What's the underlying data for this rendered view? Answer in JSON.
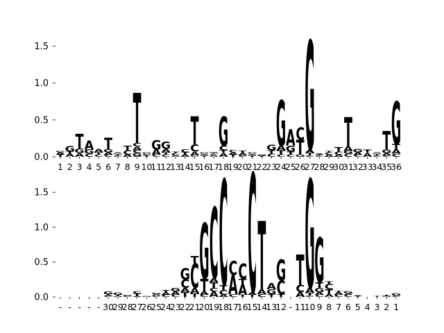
{
  "colors": {
    "A": "#008000",
    "C": "#0000ff",
    "G": "#ffa500",
    "T": "#ff0000"
  },
  "chart_data": [
    {
      "type": "sequence-logo",
      "ylim": [
        0,
        1.75
      ],
      "yticks": [
        "0.0",
        "0.5",
        "1.0",
        "1.5"
      ],
      "ytick_values": [
        0,
        0.5,
        1.0,
        1.5
      ],
      "xlabels": [
        "1",
        "2",
        "3",
        "4",
        "5",
        "6",
        "7",
        "8",
        "9",
        "10",
        "11",
        "12",
        "13",
        "14",
        "15",
        "16",
        "17",
        "18",
        "19",
        "20",
        "21",
        "22",
        "23",
        "24",
        "25",
        "26",
        "27",
        "28",
        "29",
        "30",
        "31",
        "32",
        "33",
        "34",
        "35",
        "36"
      ],
      "stacks": [
        [
          [
            "T",
            0.03
          ],
          [
            "A",
            0.03
          ],
          [
            "G",
            0.02
          ]
        ],
        [
          [
            "A",
            0.04
          ],
          [
            "T",
            0.03
          ],
          [
            "G",
            0.07
          ]
        ],
        [
          [
            "A",
            0.05
          ],
          [
            "G",
            0.06
          ],
          [
            "T",
            0.2
          ]
        ],
        [
          [
            "C",
            0.04
          ],
          [
            "G",
            0.06
          ],
          [
            "A",
            0.12
          ]
        ],
        [
          [
            "C",
            0.03
          ],
          [
            "T",
            0.03
          ],
          [
            "A",
            0.05
          ]
        ],
        [
          [
            "C",
            0.03
          ],
          [
            "A",
            0.03
          ],
          [
            "G",
            0.04
          ],
          [
            "T",
            0.16
          ]
        ],
        [
          [
            "C",
            0.02
          ],
          [
            "T",
            0.02
          ],
          [
            "A",
            0.02
          ]
        ],
        [
          [
            "A",
            0.03
          ],
          [
            "C",
            0.06
          ],
          [
            "T",
            0.06
          ]
        ],
        [
          [
            "A",
            0.01
          ],
          [
            "G",
            0.04
          ],
          [
            "C",
            0.04
          ],
          [
            "A",
            0.05
          ],
          [
            "C",
            0.05
          ],
          [
            "T",
            0.68
          ]
        ],
        [
          [
            "T",
            0.02
          ],
          [
            "C",
            0.02
          ],
          [
            "G",
            0.02
          ]
        ],
        [
          [
            "C",
            0.03
          ],
          [
            "A",
            0.07
          ],
          [
            "G",
            0.13
          ]
        ],
        [
          [
            "C",
            0.03
          ],
          [
            "T",
            0.03
          ],
          [
            "A",
            0.05
          ],
          [
            "G",
            0.1
          ]
        ],
        [
          [
            "A",
            0.02
          ],
          [
            "C",
            0.03
          ],
          [
            "T",
            0.02
          ]
        ],
        [
          [
            "A",
            0.03
          ],
          [
            "T",
            0.03
          ],
          [
            "C",
            0.04
          ]
        ],
        [
          [
            "C",
            0.02
          ],
          [
            "A",
            0.05
          ],
          [
            "C",
            0.1
          ],
          [
            "T",
            0.38
          ]
        ],
        [
          [
            "T",
            0.02
          ],
          [
            "A",
            0.02
          ],
          [
            "G",
            0.02
          ]
        ],
        [
          [
            "A",
            0.02
          ],
          [
            "C",
            0.02
          ],
          [
            "T",
            0.01
          ],
          [
            "G",
            0.01
          ]
        ],
        [
          [
            "A",
            0.05
          ],
          [
            "T",
            0.04
          ],
          [
            "C",
            0.06
          ],
          [
            "G",
            0.4
          ]
        ],
        [
          [
            "T",
            0.03
          ],
          [
            "A",
            0.03
          ],
          [
            "C",
            0.03
          ]
        ],
        [
          [
            "C",
            0.02
          ],
          [
            "A",
            0.03
          ],
          [
            "T",
            0.03
          ]
        ],
        [
          [
            "T",
            0.02
          ],
          [
            "A",
            0.02
          ],
          [
            "G",
            0.02
          ]
        ],
        [
          [
            "T",
            0.01
          ],
          [
            "A",
            0.01
          ],
          [
            "G",
            0.01
          ]
        ],
        [
          [
            "C",
            0.04
          ],
          [
            "T",
            0.05
          ],
          [
            "G",
            0.07
          ]
        ],
        [
          [
            "C",
            0.03
          ],
          [
            "T",
            0.06
          ],
          [
            "A",
            0.06
          ],
          [
            "G",
            0.62
          ]
        ],
        [
          [
            "C",
            0.03
          ],
          [
            "T",
            0.04
          ],
          [
            "G",
            0.08
          ],
          [
            "A",
            0.22
          ]
        ],
        [
          [
            "G",
            0.03
          ],
          [
            "T",
            0.2
          ],
          [
            "C",
            0.17
          ]
        ],
        [
          [
            "C",
            0.02
          ],
          [
            "T",
            0.03
          ],
          [
            "A",
            0.05
          ],
          [
            "G",
            1.48
          ]
        ],
        [
          [
            "C",
            0.02
          ],
          [
            "T",
            0.01
          ],
          [
            "A",
            0.02
          ]
        ],
        [
          [
            "A",
            0.03
          ],
          [
            "C",
            0.03
          ],
          [
            "T",
            0.02
          ]
        ],
        [
          [
            "A",
            0.03
          ],
          [
            "C",
            0.04
          ],
          [
            "T",
            0.06
          ]
        ],
        [
          [
            "C",
            0.04
          ],
          [
            "G",
            0.04
          ],
          [
            "A",
            0.06
          ],
          [
            "T",
            0.4
          ]
        ],
        [
          [
            "C",
            0.03
          ],
          [
            "A",
            0.03
          ],
          [
            "G",
            0.05
          ]
        ],
        [
          [
            "A",
            0.05
          ],
          [
            "T",
            0.05
          ]
        ],
        [
          [
            "C",
            0.02
          ],
          [
            "T",
            0.02
          ],
          [
            "A",
            0.02
          ]
        ],
        [
          [
            "C",
            0.02
          ],
          [
            "A",
            0.03
          ],
          [
            "G",
            0.05
          ],
          [
            "T",
            0.25
          ]
        ],
        [
          [
            "C",
            0.04
          ],
          [
            "A",
            0.06
          ],
          [
            "T",
            0.07
          ],
          [
            "G",
            0.58
          ]
        ]
      ]
    },
    {
      "type": "sequence-logo",
      "ylim": [
        0,
        1.75
      ],
      "yticks": [
        "0.0",
        "0.5",
        "1.0",
        "1.5"
      ],
      "ytick_values": [
        0,
        0.5,
        1.0,
        1.5
      ],
      "xlabels": [
        "-",
        "-",
        "-",
        "-",
        "-",
        "30",
        "29",
        "28",
        "27",
        "26",
        "25",
        "24",
        "23",
        "22",
        "21",
        "20",
        "19",
        "18",
        "17",
        "16",
        "15",
        "14",
        "13",
        "12",
        "-",
        "11",
        "10",
        "9",
        "8",
        "7",
        "6",
        "5",
        "4",
        "3",
        "2",
        "1"
      ],
      "stacks": [
        [],
        [],
        [],
        [],
        [],
        [
          [
            "C",
            0.01
          ],
          [
            "A",
            0.02
          ],
          [
            "T",
            0.01
          ],
          [
            "G",
            0.04
          ]
        ],
        [
          [
            "A",
            0.02
          ],
          [
            "T",
            0.01
          ],
          [
            "G",
            0.03
          ]
        ],
        [
          [
            "C",
            0.01
          ],
          [
            "G",
            0.02
          ]
        ],
        [
          [
            "A",
            0.01
          ],
          [
            "T",
            0.04
          ],
          [
            "C",
            0.03
          ]
        ],
        [
          [
            "G",
            0.01
          ]
        ],
        [
          [
            "C",
            0.02
          ],
          [
            "A",
            0.02
          ],
          [
            "G",
            0.02
          ]
        ],
        [
          [
            "C",
            0.03
          ],
          [
            "A",
            0.03
          ],
          [
            "T",
            0.04
          ]
        ],
        [
          [
            "C",
            0.03
          ],
          [
            "A",
            0.05
          ],
          [
            "G",
            0.05
          ]
        ],
        [
          [
            "T",
            0.07
          ],
          [
            "A",
            0.06
          ],
          [
            "C",
            0.12
          ],
          [
            "G",
            0.16
          ]
        ],
        [
          [
            "T",
            0.05
          ],
          [
            "A",
            0.08
          ],
          [
            "C",
            0.35
          ],
          [
            "T",
            0.1
          ]
        ],
        [
          [
            "C",
            0.03
          ],
          [
            "A",
            0.05
          ],
          [
            "T",
            0.18
          ],
          [
            "G",
            0.8
          ]
        ],
        [
          [
            "A",
            0.08
          ],
          [
            "C",
            0.05
          ],
          [
            "T",
            0.08
          ],
          [
            "A",
            0.06
          ],
          [
            "C",
            1.02
          ]
        ],
        [
          [
            "A",
            0.03
          ],
          [
            "C",
            0.07
          ],
          [
            "T",
            0.07
          ],
          [
            "C",
            1.52
          ]
        ],
        [
          [
            "C",
            0.04
          ],
          [
            "A",
            0.28
          ],
          [
            "C",
            0.2
          ]
        ],
        [
          [
            "T",
            0.03
          ],
          [
            "A",
            0.15
          ],
          [
            "T",
            0.08
          ],
          [
            "C",
            0.22
          ]
        ],
        [
          [
            "T",
            0.03
          ],
          [
            "A",
            0.04
          ],
          [
            "C",
            1.71
          ]
        ],
        [
          [
            "C",
            0.04
          ],
          [
            "A",
            0.07
          ],
          [
            "T",
            0.98
          ]
        ],
        [
          [
            "T",
            0.04
          ],
          [
            "G",
            0.07
          ],
          [
            "A",
            0.09
          ]
        ],
        [
          [
            "T",
            0.04
          ],
          [
            "C",
            0.2
          ],
          [
            "G",
            0.3
          ]
        ],
        [],
        [
          [
            "A",
            0.07
          ],
          [
            "C",
            0.1
          ],
          [
            "T",
            0.44
          ]
        ],
        [
          [
            "C",
            0.02
          ],
          [
            "T",
            0.04
          ],
          [
            "A",
            0.07
          ],
          [
            "G",
            1.56
          ]
        ],
        [
          [
            "C",
            0.03
          ],
          [
            "A",
            0.04
          ],
          [
            "G",
            0.06
          ],
          [
            "T",
            0.08
          ],
          [
            "G",
            0.64
          ]
        ],
        [
          [
            "A",
            0.04
          ],
          [
            "T",
            0.07
          ],
          [
            "C",
            0.08
          ],
          [
            "T",
            0.03
          ]
        ],
        [
          [
            "C",
            0.03
          ],
          [
            "A",
            0.04
          ],
          [
            "T",
            0.02
          ]
        ],
        [
          [
            "C",
            0.03
          ],
          [
            "A",
            0.02
          ],
          [
            "G",
            0.03
          ]
        ],
        [
          [
            "T",
            0.01
          ],
          [
            "A",
            0.01
          ]
        ],
        [],
        [
          [
            "T",
            0.01
          ]
        ],
        [
          [
            "G",
            0.01
          ],
          [
            "T",
            0.02
          ]
        ],
        [
          [
            "C",
            0.02
          ],
          [
            "G",
            0.03
          ]
        ]
      ]
    }
  ]
}
